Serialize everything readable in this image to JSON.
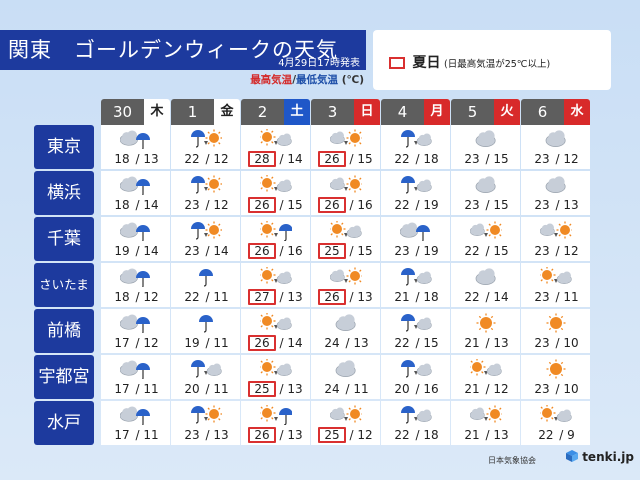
{
  "header": {
    "title": "関東　ゴールデンウィークの天気",
    "issued": "4月29日17時発表",
    "legend_hi": "最高気温",
    "legend_sep": "/",
    "legend_lo": "最低気温",
    "legend_unit": "(℃)"
  },
  "summer_legend": {
    "label": "夏日",
    "note": "(日最高気温が25℃以上)"
  },
  "days": [
    {
      "num": "30",
      "dow": "木",
      "kind": "weekday"
    },
    {
      "num": "1",
      "dow": "金",
      "kind": "weekday"
    },
    {
      "num": "2",
      "dow": "土",
      "kind": "sat"
    },
    {
      "num": "3",
      "dow": "日",
      "kind": "hol"
    },
    {
      "num": "4",
      "dow": "月",
      "kind": "hol"
    },
    {
      "num": "5",
      "dow": "火",
      "kind": "hol"
    },
    {
      "num": "6",
      "dow": "水",
      "kind": "hol"
    }
  ],
  "cities": [
    {
      "name": "東京",
      "cells": [
        {
          "icon": "cloudy-with-rain-icon",
          "hi": "18",
          "lo": "13",
          "summer": false
        },
        {
          "icon": "rain-then-sunny-icon",
          "hi": "22",
          "lo": "12",
          "summer": false
        },
        {
          "icon": "sunny-then-cloudy-icon",
          "hi": "28",
          "lo": "14",
          "summer": true
        },
        {
          "icon": "cloudy-then-sunny-icon",
          "hi": "26",
          "lo": "15",
          "summer": true
        },
        {
          "icon": "rain-then-cloudy-icon",
          "hi": "22",
          "lo": "18",
          "summer": false
        },
        {
          "icon": "cloudy-icon",
          "hi": "23",
          "lo": "15",
          "summer": false
        },
        {
          "icon": "cloudy-icon",
          "hi": "23",
          "lo": "12",
          "summer": false
        }
      ]
    },
    {
      "name": "横浜",
      "cells": [
        {
          "icon": "cloudy-with-rain-icon",
          "hi": "18",
          "lo": "14",
          "summer": false
        },
        {
          "icon": "rain-then-sunny-icon",
          "hi": "23",
          "lo": "12",
          "summer": false
        },
        {
          "icon": "sunny-then-cloudy-icon",
          "hi": "26",
          "lo": "15",
          "summer": true
        },
        {
          "icon": "cloudy-then-sunny-icon",
          "hi": "26",
          "lo": "16",
          "summer": true
        },
        {
          "icon": "rain-then-cloudy-icon",
          "hi": "22",
          "lo": "19",
          "summer": false
        },
        {
          "icon": "cloudy-icon",
          "hi": "23",
          "lo": "15",
          "summer": false
        },
        {
          "icon": "cloudy-icon",
          "hi": "23",
          "lo": "13",
          "summer": false
        }
      ]
    },
    {
      "name": "千葉",
      "cells": [
        {
          "icon": "cloudy-with-rain-icon",
          "hi": "19",
          "lo": "14",
          "summer": false
        },
        {
          "icon": "rain-then-sunny-icon",
          "hi": "23",
          "lo": "14",
          "summer": false
        },
        {
          "icon": "sunny-then-rain-icon",
          "hi": "26",
          "lo": "16",
          "summer": true
        },
        {
          "icon": "sunny-then-cloudy-icon",
          "hi": "25",
          "lo": "15",
          "summer": true
        },
        {
          "icon": "cloudy-with-rain-icon",
          "hi": "23",
          "lo": "19",
          "summer": false
        },
        {
          "icon": "cloudy-then-sunny-icon",
          "hi": "22",
          "lo": "15",
          "summer": false
        },
        {
          "icon": "cloudy-then-sunny-icon",
          "hi": "23",
          "lo": "12",
          "summer": false
        }
      ]
    },
    {
      "name": "さいたま",
      "cells": [
        {
          "icon": "cloudy-with-rain-icon",
          "hi": "18",
          "lo": "12",
          "summer": false
        },
        {
          "icon": "rain-icon",
          "hi": "22",
          "lo": "11",
          "summer": false
        },
        {
          "icon": "sunny-then-cloudy-icon",
          "hi": "27",
          "lo": "13",
          "summer": true
        },
        {
          "icon": "cloudy-then-sunny-icon",
          "hi": "26",
          "lo": "13",
          "summer": true
        },
        {
          "icon": "rain-then-cloudy-icon",
          "hi": "21",
          "lo": "18",
          "summer": false
        },
        {
          "icon": "cloudy-icon",
          "hi": "22",
          "lo": "14",
          "summer": false
        },
        {
          "icon": "sunny-then-cloudy-icon",
          "hi": "23",
          "lo": "11",
          "summer": false
        }
      ]
    },
    {
      "name": "前橋",
      "cells": [
        {
          "icon": "cloudy-with-rain-icon",
          "hi": "17",
          "lo": "12",
          "summer": false
        },
        {
          "icon": "rain-icon",
          "hi": "19",
          "lo": "11",
          "summer": false
        },
        {
          "icon": "sunny-then-cloudy-icon",
          "hi": "26",
          "lo": "14",
          "summer": true
        },
        {
          "icon": "cloudy-icon",
          "hi": "24",
          "lo": "13",
          "summer": false
        },
        {
          "icon": "rain-then-cloudy-icon",
          "hi": "22",
          "lo": "15",
          "summer": false
        },
        {
          "icon": "sunny-icon",
          "hi": "21",
          "lo": "13",
          "summer": false
        },
        {
          "icon": "sunny-icon",
          "hi": "23",
          "lo": "10",
          "summer": false
        }
      ]
    },
    {
      "name": "宇都宮",
      "cells": [
        {
          "icon": "cloudy-with-rain-icon",
          "hi": "17",
          "lo": "11",
          "summer": false
        },
        {
          "icon": "rain-then-cloudy-icon",
          "hi": "20",
          "lo": "11",
          "summer": false
        },
        {
          "icon": "sunny-then-cloudy-icon",
          "hi": "25",
          "lo": "13",
          "summer": true
        },
        {
          "icon": "cloudy-icon",
          "hi": "24",
          "lo": "11",
          "summer": false
        },
        {
          "icon": "rain-then-cloudy-icon",
          "hi": "20",
          "lo": "16",
          "summer": false
        },
        {
          "icon": "sunny-then-cloudy-icon",
          "hi": "21",
          "lo": "12",
          "summer": false
        },
        {
          "icon": "sunny-icon",
          "hi": "23",
          "lo": "10",
          "summer": false
        }
      ]
    },
    {
      "name": "水戸",
      "cells": [
        {
          "icon": "cloudy-with-rain-icon",
          "hi": "17",
          "lo": "11",
          "summer": false
        },
        {
          "icon": "rain-then-sunny-icon",
          "hi": "23",
          "lo": "13",
          "summer": false
        },
        {
          "icon": "sunny-then-rain-icon",
          "hi": "26",
          "lo": "13",
          "summer": true
        },
        {
          "icon": "cloudy-then-sunny-icon",
          "hi": "25",
          "lo": "12",
          "summer": true
        },
        {
          "icon": "rain-then-cloudy-icon",
          "hi": "22",
          "lo": "18",
          "summer": false
        },
        {
          "icon": "cloudy-then-sunny-icon",
          "hi": "21",
          "lo": "13",
          "summer": false
        },
        {
          "icon": "sunny-then-cloudy-icon",
          "hi": "22",
          "lo": "9",
          "summer": false
        }
      ]
    }
  ],
  "footer": {
    "source": "日本気象協会",
    "logo": "tenki.jp"
  },
  "colors": {
    "title_bg": "#1d3a9e",
    "saturday": "#1f57c8",
    "holiday": "#d82a2a",
    "summer_outline": "#d93030",
    "sun": "#f08a24",
    "cloud": "#c7ced8",
    "rain": "#2a62c9"
  }
}
